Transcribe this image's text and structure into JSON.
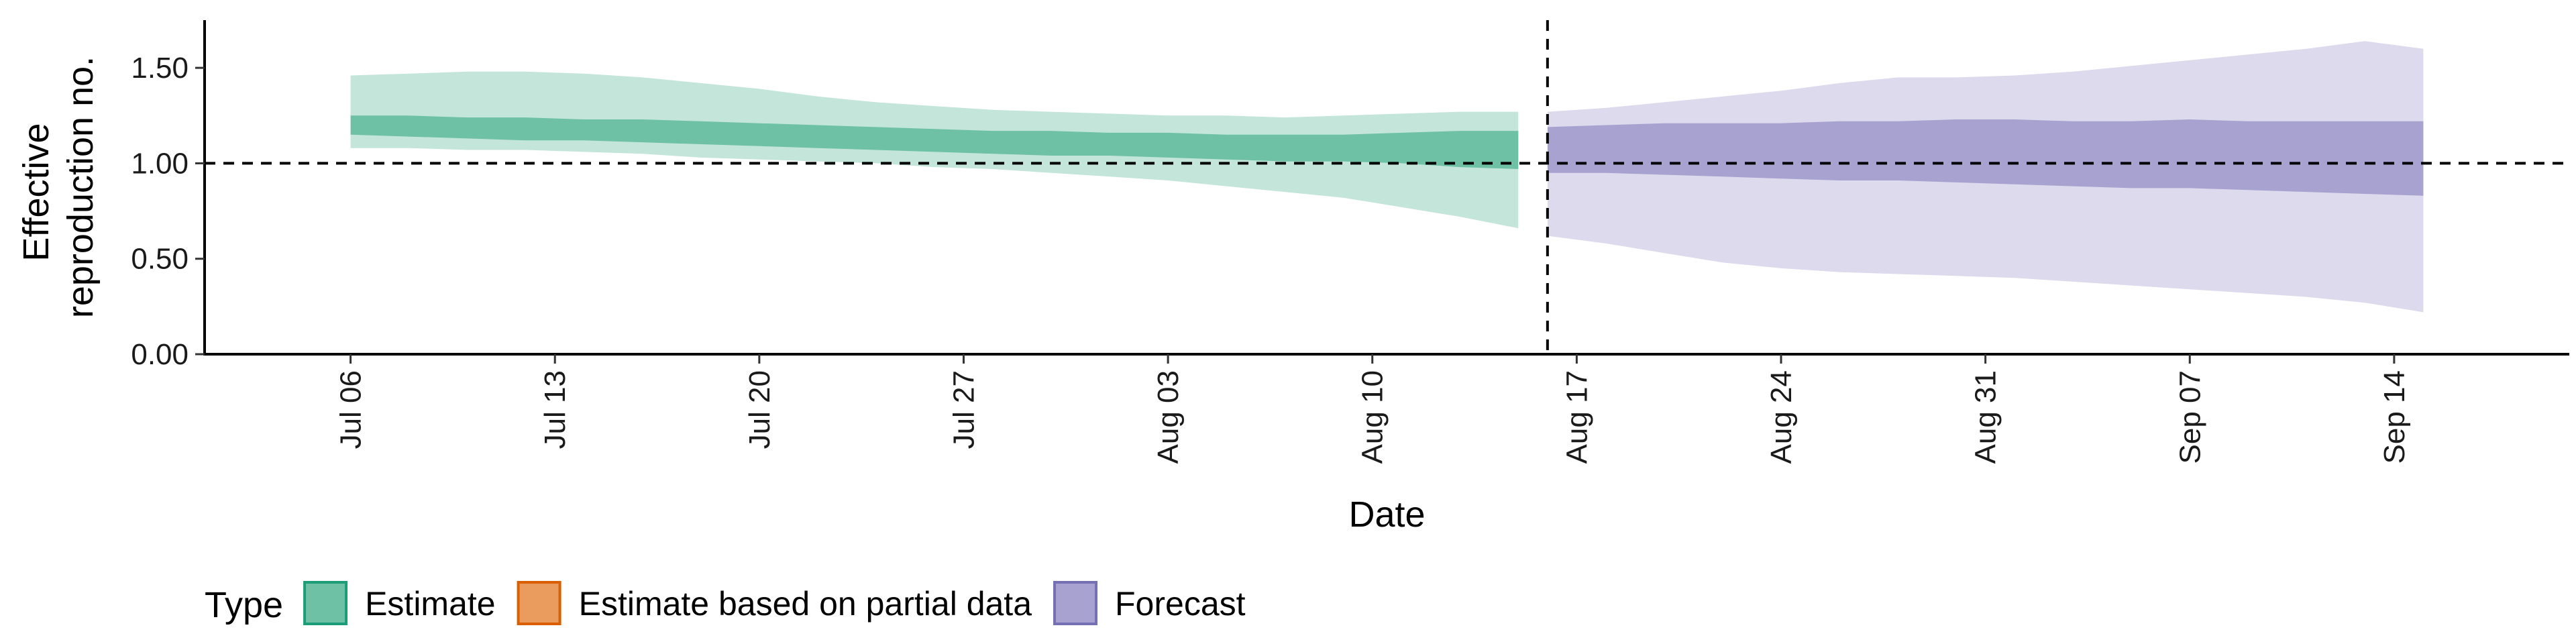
{
  "chart_data": {
    "type": "area",
    "xlabel": "Date",
    "ylabel": "Effective reproduction no.",
    "ylabel_lines": [
      "Effective",
      "reproduction no."
    ],
    "ylim": [
      0.0,
      1.75
    ],
    "xlim": [
      "2020-07-01",
      "2020-09-20"
    ],
    "y_ticks": [
      {
        "value": 0.0,
        "label": "0.00"
      },
      {
        "value": 0.5,
        "label": "0.50"
      },
      {
        "value": 1.0,
        "label": "1.00"
      },
      {
        "value": 1.5,
        "label": "1.50"
      }
    ],
    "x_ticks": [
      {
        "date": "2020-07-06",
        "label": "Jul 06"
      },
      {
        "date": "2020-07-13",
        "label": "Jul 13"
      },
      {
        "date": "2020-07-20",
        "label": "Jul 20"
      },
      {
        "date": "2020-07-27",
        "label": "Jul 27"
      },
      {
        "date": "2020-08-03",
        "label": "Aug 03"
      },
      {
        "date": "2020-08-10",
        "label": "Aug 10"
      },
      {
        "date": "2020-08-17",
        "label": "Aug 17"
      },
      {
        "date": "2020-08-24",
        "label": "Aug 24"
      },
      {
        "date": "2020-08-31",
        "label": "Aug 31"
      },
      {
        "date": "2020-09-07",
        "label": "Sep 07"
      },
      {
        "date": "2020-09-14",
        "label": "Sep 14"
      }
    ],
    "reference_lines": {
      "horizontal_y": 1.0,
      "vertical_date": "2020-08-16",
      "style": "dashed"
    },
    "grid": false,
    "legend": {
      "title": "Type",
      "placement": "bottom-left",
      "items": [
        {
          "label": "Estimate",
          "fill": "#6fc1a5",
          "stroke": "#1b9e77"
        },
        {
          "label": "Estimate based on partial data",
          "fill": "#ea9c5e",
          "stroke": "#d95f02"
        },
        {
          "label": "Forecast",
          "fill": "#a7a2d0",
          "stroke": "#7570b3"
        }
      ]
    },
    "series": [
      {
        "type_key": "Estimate",
        "inner_color": "#6fc1a5",
        "outer_color": "#c4e6da",
        "x": [
          "2020-07-06",
          "2020-07-08",
          "2020-07-10",
          "2020-07-12",
          "2020-07-14",
          "2020-07-16",
          "2020-07-18",
          "2020-07-20",
          "2020-07-22",
          "2020-07-24",
          "2020-07-26",
          "2020-07-28",
          "2020-07-30",
          "2020-08-01",
          "2020-08-03",
          "2020-08-05",
          "2020-08-07",
          "2020-08-09",
          "2020-08-11",
          "2020-08-13",
          "2020-08-15"
        ],
        "inner_lower": [
          1.15,
          1.14,
          1.13,
          1.12,
          1.12,
          1.11,
          1.1,
          1.09,
          1.08,
          1.07,
          1.06,
          1.05,
          1.04,
          1.04,
          1.03,
          1.02,
          1.01,
          1.01,
          1.0,
          0.98,
          0.97
        ],
        "inner_upper": [
          1.25,
          1.25,
          1.24,
          1.24,
          1.23,
          1.23,
          1.22,
          1.21,
          1.2,
          1.19,
          1.18,
          1.17,
          1.17,
          1.16,
          1.16,
          1.15,
          1.15,
          1.15,
          1.16,
          1.17,
          1.17
        ],
        "outer_lower": [
          1.08,
          1.08,
          1.07,
          1.07,
          1.06,
          1.05,
          1.03,
          1.02,
          1.01,
          1.0,
          0.98,
          0.97,
          0.95,
          0.93,
          0.91,
          0.88,
          0.85,
          0.82,
          0.77,
          0.72,
          0.66
        ],
        "outer_upper": [
          1.46,
          1.47,
          1.48,
          1.48,
          1.47,
          1.45,
          1.42,
          1.39,
          1.35,
          1.32,
          1.3,
          1.28,
          1.27,
          1.26,
          1.25,
          1.25,
          1.24,
          1.25,
          1.26,
          1.27,
          1.27
        ]
      },
      {
        "type_key": "Forecast",
        "inner_color": "#a7a2d0",
        "outer_color": "#dcdaec",
        "x": [
          "2020-08-16",
          "2020-08-18",
          "2020-08-20",
          "2020-08-22",
          "2020-08-24",
          "2020-08-26",
          "2020-08-28",
          "2020-08-30",
          "2020-09-01",
          "2020-09-03",
          "2020-09-05",
          "2020-09-07",
          "2020-09-09",
          "2020-09-11",
          "2020-09-13",
          "2020-09-15"
        ],
        "inner_lower": [
          0.95,
          0.95,
          0.94,
          0.93,
          0.92,
          0.91,
          0.91,
          0.9,
          0.89,
          0.88,
          0.87,
          0.87,
          0.86,
          0.85,
          0.84,
          0.83
        ],
        "inner_upper": [
          1.19,
          1.2,
          1.21,
          1.21,
          1.21,
          1.22,
          1.22,
          1.23,
          1.23,
          1.22,
          1.22,
          1.23,
          1.22,
          1.22,
          1.22,
          1.22
        ],
        "outer_lower": [
          0.62,
          0.58,
          0.53,
          0.48,
          0.45,
          0.43,
          0.42,
          0.41,
          0.4,
          0.38,
          0.36,
          0.34,
          0.32,
          0.3,
          0.27,
          0.22
        ],
        "outer_upper": [
          1.27,
          1.29,
          1.32,
          1.35,
          1.38,
          1.42,
          1.45,
          1.45,
          1.46,
          1.48,
          1.51,
          1.54,
          1.57,
          1.6,
          1.64,
          1.6
        ]
      }
    ]
  }
}
